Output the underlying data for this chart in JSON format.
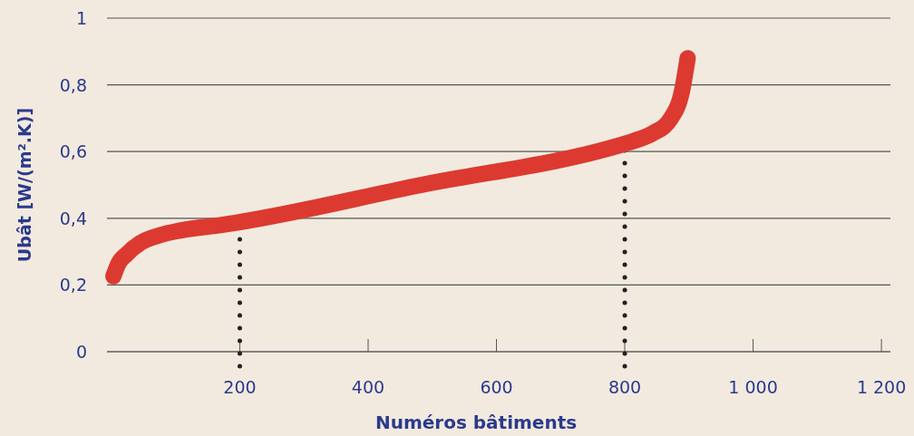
{
  "chart_data": {
    "type": "line",
    "xlabel": "Numéros bâtiments",
    "ylabel": "Ubât [W/(m².K)]",
    "series": [
      {
        "color": "#dc3a30",
        "x": [
          3,
          10,
          24,
          45,
          73,
          109,
          172,
          483,
          794,
          816,
          844,
          872,
          889,
          898
        ],
        "values": [
          0.226,
          0.261,
          0.293,
          0.326,
          0.348,
          0.364,
          0.38,
          0.5,
          0.62,
          0.633,
          0.655,
          0.7,
          0.78,
          0.88
        ]
      }
    ],
    "xlim": [
      -7,
      1214
    ],
    "ylim": [
      0,
      1
    ],
    "xticks": [
      200,
      400,
      600,
      800,
      {
        "value": 1000,
        "label": "1 000"
      },
      {
        "value": 1200,
        "label": "1 200"
      }
    ],
    "yticks": [
      0,
      {
        "value": 0.2,
        "label": "0,2"
      },
      {
        "value": 0.4,
        "label": "0,4"
      },
      {
        "value": 0.6,
        "label": "0,6"
      },
      {
        "value": 0.8,
        "label": "0,8"
      },
      1
    ],
    "ref_lines": [
      {
        "axis": "x",
        "value": 200,
        "line_style": "dotted"
      },
      {
        "axis": "x",
        "value": 800,
        "line_style": "dotted"
      }
    ],
    "grid": "y",
    "line_style": "solid"
  }
}
